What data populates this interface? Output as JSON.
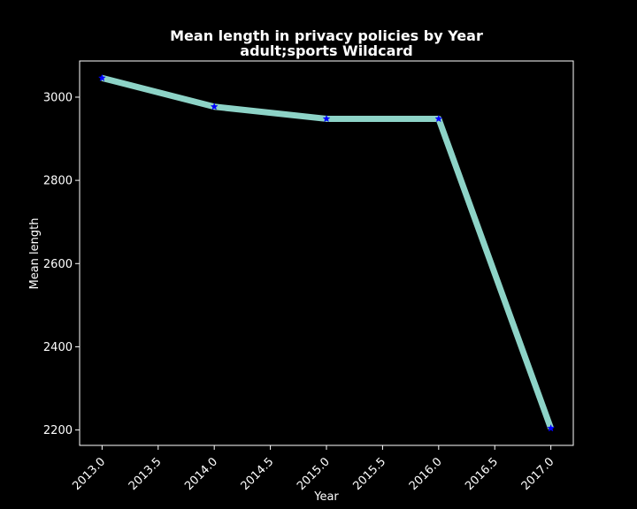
{
  "chart_data": {
    "type": "line",
    "title": "Mean length in privacy policies by Year",
    "subtitle": "adult;sports Wildcard",
    "xlabel": "Year",
    "ylabel": "Mean length",
    "x": [
      2013,
      2014,
      2015,
      2016,
      2017
    ],
    "series": [
      {
        "values": [
          3046,
          2977,
          2948,
          2948,
          2204
        ],
        "line_color": "#8dd3c7",
        "marker": "star",
        "marker_color": "#0000ff"
      }
    ],
    "xlim": [
      2012.8,
      2017.2
    ],
    "ylim": [
      2163,
      3087
    ],
    "xticks": [
      2013.0,
      2013.5,
      2014.0,
      2014.5,
      2015.0,
      2015.5,
      2016.0,
      2016.5,
      2017.0
    ],
    "xtick_labels": [
      "2013.0",
      "2013.5",
      "2014.0",
      "2014.5",
      "2015.0",
      "2015.5",
      "2016.0",
      "2016.5",
      "2017.0"
    ],
    "yticks": [
      2200,
      2400,
      2600,
      2800,
      3000
    ],
    "ytick_labels": [
      "2200",
      "2400",
      "2600",
      "2800",
      "3000"
    ],
    "grid": false,
    "background": "#000000",
    "axis_color": "#ffffff"
  }
}
